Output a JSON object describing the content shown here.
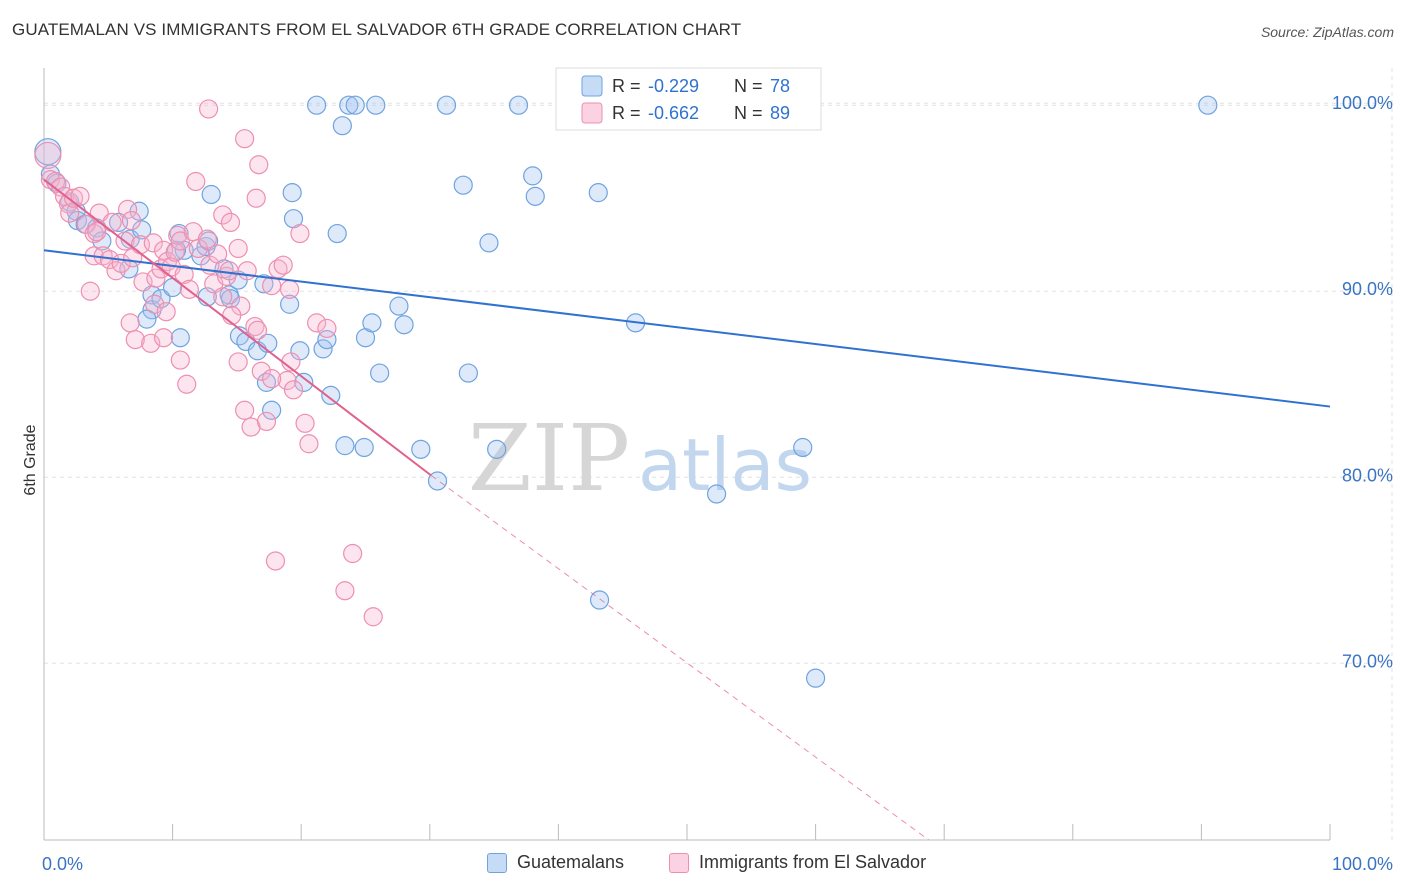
{
  "title": "GUATEMALAN VS IMMIGRANTS FROM EL SALVADOR 6TH GRADE CORRELATION CHART",
  "source": "Source: ZipAtlas.com",
  "watermark": {
    "zip": "ZIP",
    "atlas": "atlas"
  },
  "colors": {
    "blue": "#6fa3e0",
    "blue_fill": "rgba(160,196,240,0.35)",
    "blue_line": "#2f72d0",
    "pink": "#ee8fb0",
    "pink_fill": "rgba(246,180,205,0.35)",
    "pink_line": "#e0608e",
    "axis_label": "#3a74c4",
    "grid": "#e2e2e2"
  },
  "legend_top": {
    "rows": [
      {
        "r_label": "R = ",
        "r_value": "-0.229",
        "n_label": "N = ",
        "n_value": "78"
      },
      {
        "r_label": "R = ",
        "r_value": "-0.662",
        "n_label": "N = ",
        "n_value": "89"
      }
    ]
  },
  "legend_bottom": [
    {
      "label": "Guatemalans"
    },
    {
      "label": "Immigrants from El Salvador"
    }
  ],
  "chart_data": {
    "type": "scatter",
    "title": "GUATEMALAN VS IMMIGRANTS FROM EL SALVADOR 6TH GRADE CORRELATION CHART",
    "ylabel": "6th Grade",
    "xlim": [
      0,
      100
    ],
    "ylim": [
      60.5,
      102
    ],
    "x_tick_labels": [
      "0.0%",
      "100.0%"
    ],
    "y_ticks": [
      70,
      80,
      90,
      100
    ],
    "y_tick_labels": [
      "70.0%",
      "80.0%",
      "90.0%",
      "100.0%"
    ],
    "grid": true,
    "legend_position": "top-center",
    "series": [
      {
        "name": "Guatemalans",
        "r": -0.229,
        "n": 78,
        "trend": {
          "x": [
            0,
            100
          ],
          "y": [
            92.2,
            83.8
          ]
        },
        "points": [
          [
            0.3,
            97.5
          ],
          [
            0.5,
            96.3
          ],
          [
            1.0,
            95.8
          ],
          [
            2.0,
            94.8
          ],
          [
            2.5,
            94.3
          ],
          [
            2.6,
            93.8
          ],
          [
            3.2,
            93.6
          ],
          [
            4.1,
            93.4
          ],
          [
            4.5,
            92.7
          ],
          [
            5.8,
            93.7
          ],
          [
            6.7,
            92.8
          ],
          [
            7.6,
            93.3
          ],
          [
            7.4,
            94.3
          ],
          [
            6.6,
            91.2
          ],
          [
            8.4,
            89.8
          ],
          [
            8.4,
            89.0
          ],
          [
            9.1,
            89.6
          ],
          [
            10.0,
            90.2
          ],
          [
            10.9,
            92.2
          ],
          [
            10.3,
            92.2
          ],
          [
            10.6,
            87.5
          ],
          [
            10.5,
            93.1
          ],
          [
            12.7,
            89.7
          ],
          [
            12.2,
            91.9
          ],
          [
            14.4,
            89.8
          ],
          [
            14.0,
            91.2
          ],
          [
            12.6,
            92.4
          ],
          [
            12.8,
            92.7
          ],
          [
            13.0,
            95.2
          ],
          [
            14.5,
            89.6
          ],
          [
            15.1,
            90.6
          ],
          [
            15.2,
            87.6
          ],
          [
            15.7,
            87.3
          ],
          [
            16.6,
            86.8
          ],
          [
            17.4,
            87.2
          ],
          [
            17.3,
            85.1
          ],
          [
            17.7,
            83.6
          ],
          [
            19.1,
            89.3
          ],
          [
            19.3,
            95.3
          ],
          [
            19.4,
            93.9
          ],
          [
            19.9,
            86.8
          ],
          [
            20.2,
            85.1
          ],
          [
            21.7,
            86.9
          ],
          [
            22.0,
            87.4
          ],
          [
            22.3,
            84.4
          ],
          [
            22.8,
            93.1
          ],
          [
            23.4,
            81.7
          ],
          [
            24.9,
            81.6
          ],
          [
            25.0,
            87.5
          ],
          [
            25.5,
            88.3
          ],
          [
            26.1,
            85.6
          ],
          [
            27.6,
            89.2
          ],
          [
            28.0,
            88.2
          ],
          [
            29.3,
            81.5
          ],
          [
            30.6,
            79.8
          ],
          [
            32.6,
            95.7
          ],
          [
            33.0,
            85.6
          ],
          [
            34.6,
            92.6
          ],
          [
            35.2,
            81.5
          ],
          [
            38.0,
            96.2
          ],
          [
            38.2,
            95.1
          ],
          [
            43.1,
            95.3
          ],
          [
            43.2,
            73.4
          ],
          [
            46.0,
            88.3
          ],
          [
            52.3,
            79.1
          ],
          [
            59.0,
            81.6
          ],
          [
            60.0,
            69.2
          ],
          [
            21.2,
            100.0
          ],
          [
            23.2,
            98.9
          ],
          [
            23.7,
            100.0
          ],
          [
            24.2,
            100.0
          ],
          [
            25.8,
            100.0
          ],
          [
            31.3,
            100.0
          ],
          [
            36.9,
            100.0
          ],
          [
            58.4,
            100.0
          ],
          [
            90.5,
            100.0
          ],
          [
            17.1,
            90.4
          ],
          [
            8.0,
            88.5
          ]
        ]
      },
      {
        "name": "Immigrants from El Salvador",
        "r": -0.662,
        "n": 89,
        "trend": {
          "x": [
            0,
            30.1
          ],
          "y": [
            96.0,
            80.1
          ]
        },
        "trend_extension": {
          "x": [
            30.1,
            68.8
          ],
          "y": [
            80.1,
            60.5
          ]
        },
        "points": [
          [
            0.3,
            97.3
          ],
          [
            0.5,
            96.0
          ],
          [
            0.9,
            95.9
          ],
          [
            1.3,
            95.6
          ],
          [
            1.6,
            95.1
          ],
          [
            1.9,
            94.7
          ],
          [
            2.0,
            94.2
          ],
          [
            2.3,
            95.0
          ],
          [
            2.8,
            95.1
          ],
          [
            3.3,
            93.6
          ],
          [
            3.9,
            93.1
          ],
          [
            4.1,
            93.2
          ],
          [
            4.3,
            94.2
          ],
          [
            3.9,
            91.9
          ],
          [
            4.6,
            91.9
          ],
          [
            5.1,
            91.7
          ],
          [
            5.6,
            91.1
          ],
          [
            5.3,
            93.7
          ],
          [
            6.0,
            91.5
          ],
          [
            6.3,
            92.7
          ],
          [
            6.5,
            94.4
          ],
          [
            6.8,
            93.8
          ],
          [
            6.9,
            91.8
          ],
          [
            7.5,
            92.5
          ],
          [
            7.7,
            90.5
          ],
          [
            8.5,
            92.6
          ],
          [
            8.7,
            90.7
          ],
          [
            9.1,
            91.2
          ],
          [
            9.3,
            92.2
          ],
          [
            9.6,
            91.6
          ],
          [
            9.9,
            91.3
          ],
          [
            10.2,
            92.1
          ],
          [
            10.4,
            93.0
          ],
          [
            10.6,
            92.7
          ],
          [
            10.9,
            90.9
          ],
          [
            11.3,
            90.1
          ],
          [
            11.6,
            93.2
          ],
          [
            12.0,
            92.3
          ],
          [
            12.7,
            92.8
          ],
          [
            12.9,
            91.4
          ],
          [
            13.2,
            90.4
          ],
          [
            13.5,
            92.0
          ],
          [
            13.9,
            94.1
          ],
          [
            14.2,
            90.8
          ],
          [
            14.4,
            91.1
          ],
          [
            15.1,
            92.3
          ],
          [
            15.3,
            89.2
          ],
          [
            15.8,
            91.1
          ],
          [
            16.4,
            88.1
          ],
          [
            16.9,
            85.7
          ],
          [
            17.7,
            90.3
          ],
          [
            18.2,
            91.2
          ],
          [
            19.2,
            86.2
          ],
          [
            3.6,
            90.0
          ],
          [
            6.7,
            88.3
          ],
          [
            7.1,
            87.4
          ],
          [
            8.3,
            87.2
          ],
          [
            8.6,
            89.3
          ],
          [
            9.5,
            88.9
          ],
          [
            10.6,
            86.3
          ],
          [
            11.1,
            85.0
          ],
          [
            14.6,
            88.7
          ],
          [
            15.1,
            86.2
          ],
          [
            15.6,
            83.6
          ],
          [
            16.1,
            82.7
          ],
          [
            17.3,
            83.0
          ],
          [
            18.9,
            85.2
          ],
          [
            19.4,
            84.7
          ],
          [
            20.3,
            82.9
          ],
          [
            20.6,
            81.8
          ],
          [
            21.2,
            88.3
          ],
          [
            17.7,
            85.3
          ],
          [
            11.8,
            95.9
          ],
          [
            14.5,
            93.7
          ],
          [
            13.9,
            89.7
          ],
          [
            18.6,
            91.4
          ],
          [
            19.9,
            93.1
          ],
          [
            16.6,
            87.9
          ],
          [
            12.8,
            99.8
          ],
          [
            15.6,
            98.2
          ],
          [
            16.7,
            96.8
          ],
          [
            16.5,
            95.0
          ],
          [
            18.0,
            75.5
          ],
          [
            23.4,
            73.9
          ],
          [
            24.0,
            75.9
          ],
          [
            25.6,
            72.5
          ],
          [
            19.1,
            90.1
          ],
          [
            9.3,
            87.5
          ],
          [
            22.0,
            88.0
          ]
        ]
      }
    ]
  }
}
